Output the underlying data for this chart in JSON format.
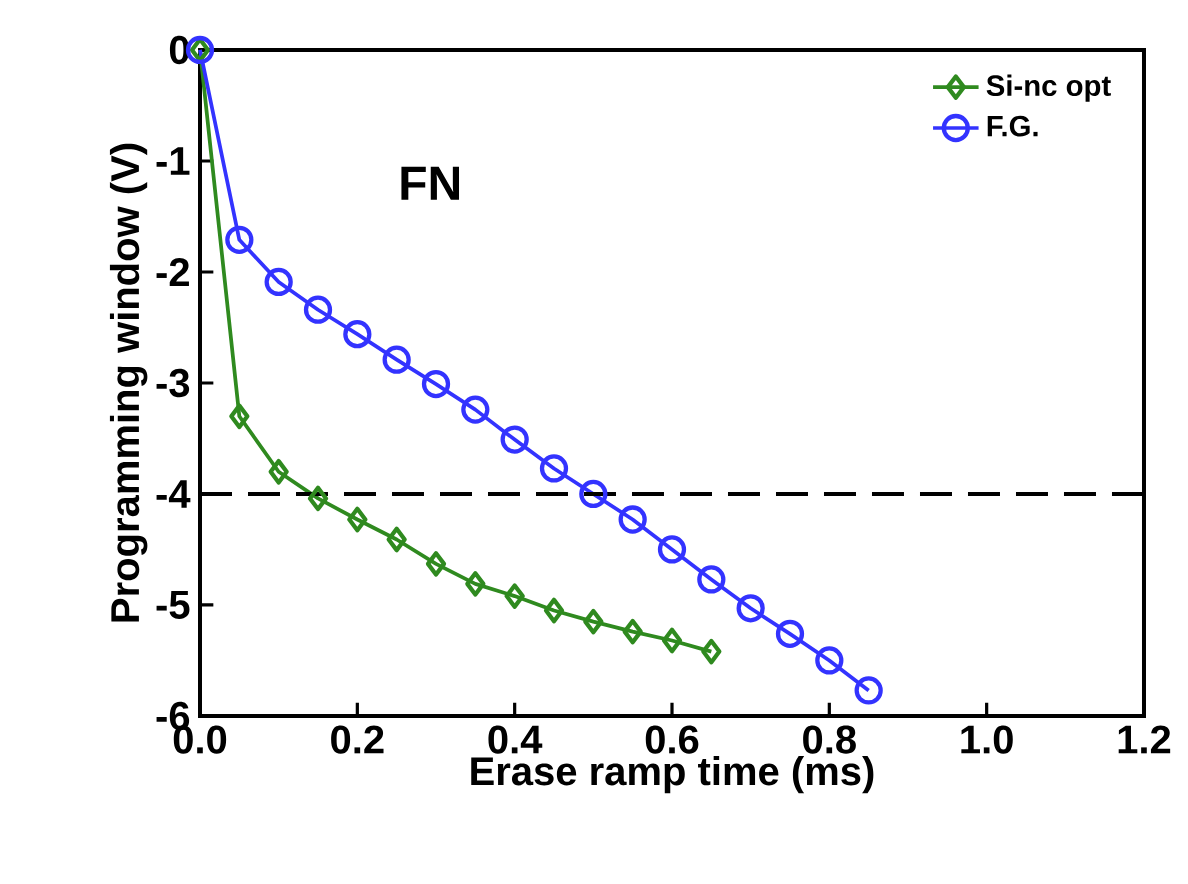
{
  "chart_data": {
    "type": "line",
    "xlabel": "Erase ramp time (ms)",
    "ylabel": "Programming window (V)",
    "annotations": [
      "FN"
    ],
    "xlim": [
      0,
      1.2
    ],
    "xticks": [
      {
        "value": 0,
        "label": "0.0"
      },
      {
        "value": 0.2,
        "label": "0.2"
      },
      {
        "value": 0.4,
        "label": "0.4"
      },
      {
        "value": 0.6,
        "label": "0.6"
      },
      {
        "value": 0.8,
        "label": "0.8"
      },
      {
        "value": 1.0,
        "label": "1.0"
      },
      {
        "value": 1.2,
        "label": "1.2"
      }
    ],
    "ylim": [
      -6,
      0
    ],
    "yticks": [
      -6,
      -5,
      -4,
      -3,
      -2,
      -1,
      0
    ],
    "legend": "top right",
    "grid": false,
    "line_style": "solid",
    "ref_lines": [
      {
        "axis": "y",
        "value": -4,
        "line_style": "dashed",
        "color": "#000000"
      }
    ],
    "series": [
      {
        "name": "Si-nc opt",
        "color": "#2f8a1f",
        "marker": "diamond",
        "x": [
          0,
          0.05,
          0.1,
          0.15,
          0.2,
          0.25,
          0.3,
          0.35,
          0.4,
          0.45,
          0.5,
          0.55,
          0.6,
          0.65
        ],
        "values": [
          0,
          -3.3,
          -3.8,
          -4.04,
          -4.23,
          -4.41,
          -4.63,
          -4.81,
          -4.92,
          -5.05,
          -5.15,
          -5.24,
          -5.32,
          -5.42
        ]
      },
      {
        "name": "F.G.",
        "color": "#3333ff",
        "marker": "circle",
        "x": [
          0,
          0.05,
          0.1,
          0.15,
          0.2,
          0.25,
          0.3,
          0.35,
          0.4,
          0.45,
          0.5,
          0.55,
          0.6,
          0.65,
          0.7,
          0.75,
          0.8,
          0.85
        ],
        "values": [
          0,
          -1.71,
          -2.09,
          -2.34,
          -2.56,
          -2.79,
          -3.01,
          -3.24,
          -3.51,
          -3.77,
          -4.0,
          -4.23,
          -4.5,
          -4.77,
          -5.03,
          -5.26,
          -5.5,
          -5.77
        ]
      }
    ]
  }
}
